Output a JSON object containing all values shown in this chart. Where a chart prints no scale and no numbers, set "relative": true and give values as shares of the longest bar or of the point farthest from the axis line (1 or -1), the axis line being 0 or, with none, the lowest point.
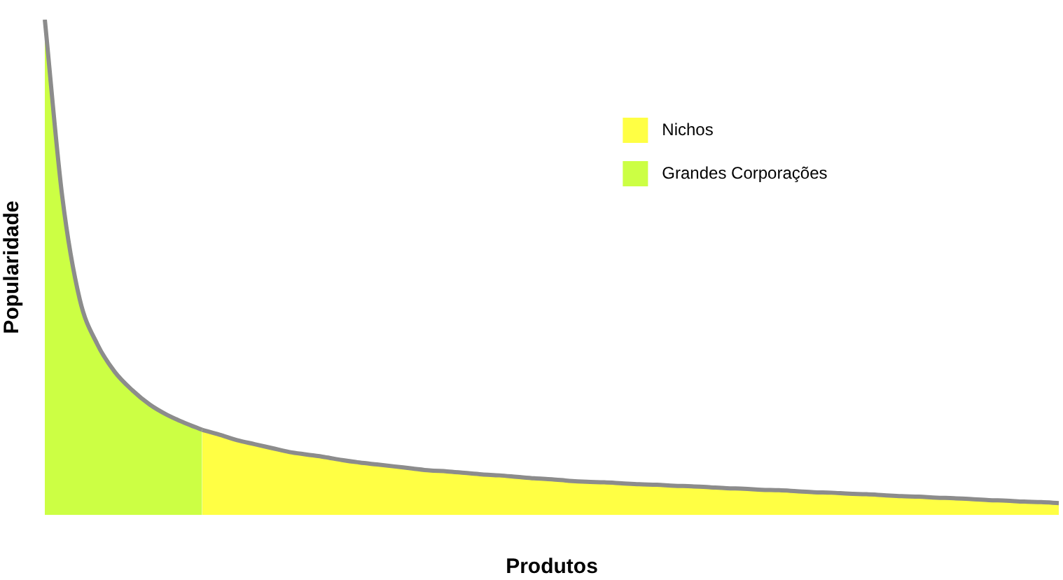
{
  "chart_data": {
    "type": "area",
    "relative": true,
    "xlabel": "Produtos",
    "ylabel": "Popularidade",
    "legend": "top right",
    "grid": false,
    "categories": [
      null,
      null,
      null,
      null,
      null,
      null,
      null,
      null,
      null,
      null,
      null,
      null,
      null,
      null,
      null,
      null,
      null,
      null,
      null,
      null,
      null,
      null,
      null,
      null,
      null,
      null,
      null,
      null,
      null,
      null,
      null,
      null,
      null,
      null,
      null,
      null,
      null,
      null,
      null,
      null,
      null,
      null,
      null,
      null,
      null,
      null,
      null,
      null,
      null,
      null,
      null,
      null,
      null,
      null,
      null,
      null,
      null,
      null,
      null
    ],
    "series": [
      {
        "name": "Nichos",
        "color": "#ffff44",
        "values": [
          null,
          null,
          null,
          null,
          null,
          null,
          null,
          null,
          null,
          0.172,
          0.162,
          0.151,
          0.143,
          0.135,
          0.127,
          0.122,
          0.117,
          0.111,
          0.106,
          0.102,
          0.098,
          0.094,
          0.09,
          0.088,
          0.085,
          0.082,
          0.08,
          0.077,
          0.074,
          0.072,
          0.069,
          0.067,
          0.066,
          0.064,
          0.062,
          0.061,
          0.059,
          0.058,
          0.056,
          0.054,
          0.053,
          0.051,
          0.05,
          0.048,
          0.046,
          0.045,
          0.043,
          0.042,
          0.04,
          0.038,
          0.037,
          0.035,
          0.034,
          0.032,
          0.03,
          0.029,
          0.027,
          0.026,
          0.024
        ]
      },
      {
        "name": "Grandes Corporações",
        "color": "#ccff44",
        "values": [
          1.0,
          0.642,
          0.435,
          0.345,
          0.289,
          0.252,
          0.223,
          0.202,
          0.186,
          0.172,
          null,
          null,
          null,
          null,
          null,
          null,
          null,
          null,
          null,
          null,
          null,
          null,
          null,
          null,
          null,
          null,
          null,
          null,
          null,
          null,
          null,
          null,
          null,
          null,
          null,
          null,
          null,
          null,
          null,
          null,
          null,
          null,
          null,
          null,
          null,
          null,
          null,
          null,
          null,
          null,
          null,
          null,
          null,
          null,
          null,
          null,
          null,
          null,
          null
        ]
      }
    ]
  }
}
